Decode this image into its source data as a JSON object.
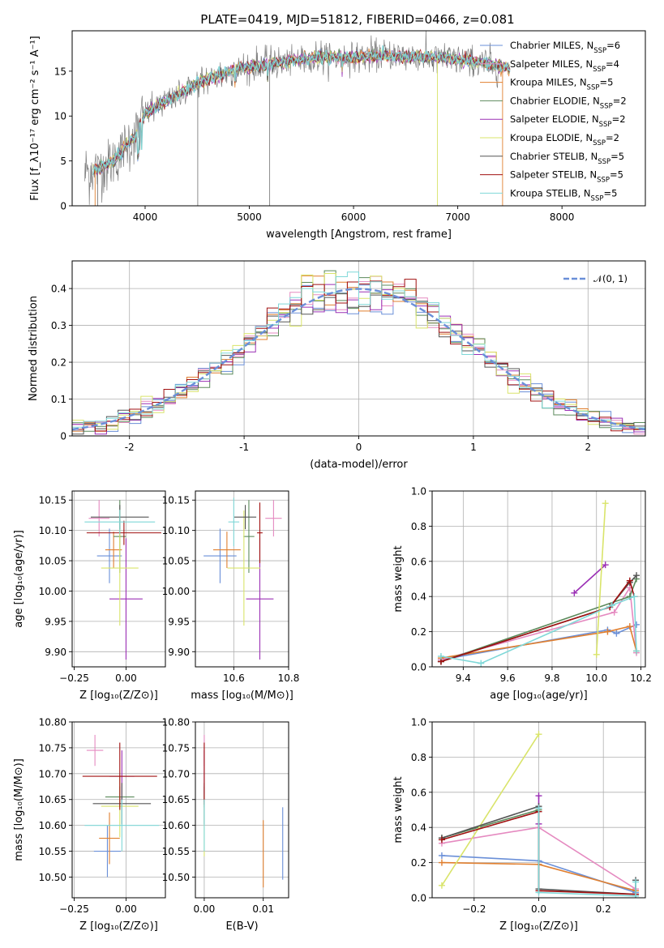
{
  "title": "PLATE=0419, MJD=51812, FIBERID=0466, z=0.081",
  "colors": {
    "Chabrier MILES": "#6a8fd8",
    "Salpeter MILES": "#e58ac0",
    "Kroupa MILES": "#e07f2f",
    "Chabrier ELODIE": "#5b8a5b",
    "Salpeter ELODIE": "#9b30b5",
    "Kroupa ELODIE": "#d9e46a",
    "Chabrier STELIB": "#555555",
    "Salpeter STELIB": "#a01010",
    "Kroupa STELIB": "#7fd8d8",
    "data": "#808080"
  },
  "chart_data": [
    {
      "id": "spectrum",
      "type": "line",
      "xlabel": "wavelength [Angstrom, rest frame]",
      "ylabel": "Flux [f_λ10⁻¹⁷ erg cm⁻² s⁻¹ A⁻¹]",
      "xlim": [
        3300,
        8800
      ],
      "ylim": [
        0,
        19.5
      ],
      "xticks": [
        4000,
        5000,
        6000,
        7000,
        8000
      ],
      "yticks": [
        0,
        5,
        10,
        15
      ],
      "grid": false,
      "legend_position": "right",
      "legend": [
        {
          "label": "Chabrier MILES, N",
          "sub": "SSP",
          "suffix": "=6"
        },
        {
          "label": "Salpeter MILES, N",
          "sub": "SSP",
          "suffix": "=4"
        },
        {
          "label": "Kroupa MILES, N",
          "sub": "SSP",
          "suffix": "=5"
        },
        {
          "label": "Chabrier ELODIE, N",
          "sub": "SSP",
          "suffix": "=2"
        },
        {
          "label": "Salpeter ELODIE, N",
          "sub": "SSP",
          "suffix": "=2"
        },
        {
          "label": "Kroupa ELODIE, N",
          "sub": "SSP",
          "suffix": "=2"
        },
        {
          "label": "Chabrier STELIB, N",
          "sub": "SSP",
          "suffix": "=5"
        },
        {
          "label": "Salpeter STELIB, N",
          "sub": "SSP",
          "suffix": "=5"
        },
        {
          "label": "Kroupa STELIB, N",
          "sub": "SSP",
          "suffix": "=5"
        }
      ],
      "continuum_x": [
        3500,
        3700,
        3900,
        4000,
        4100,
        4300,
        4500,
        4700,
        4900,
        5100,
        5300,
        5500,
        5700,
        5900,
        6100,
        6300,
        6500,
        6700,
        6900,
        7100,
        7300,
        7500
      ],
      "continuum_y": [
        3.8,
        5.0,
        7.8,
        10.2,
        11.0,
        12.3,
        13.6,
        14.5,
        15.3,
        15.6,
        16.0,
        16.3,
        16.6,
        16.5,
        16.6,
        16.7,
        16.6,
        16.6,
        16.4,
        16.2,
        15.8,
        15.3
      ],
      "model_range": [
        3500,
        7500
      ],
      "data_range": [
        3420,
        7430
      ]
    },
    {
      "id": "residuals",
      "type": "line",
      "xlabel": "(data-model)/error",
      "ylabel": "Normed distribution",
      "xlim": [
        -2.5,
        2.5
      ],
      "ylim": [
        0,
        0.475
      ],
      "xticks": [
        -2,
        -1,
        0,
        1,
        2
      ],
      "yticks": [
        0.0,
        0.1,
        0.2,
        0.3,
        0.4
      ],
      "grid": true,
      "legend_position": "top-right",
      "legend_label": "𝒩(0, 1)",
      "bin_width": 0.1,
      "bins_range": [
        -2.5,
        2.5
      ]
    },
    {
      "id": "age_vs_Z",
      "type": "scatter",
      "xlabel": "Z [log₁₀(Z/Z⊙)]",
      "ylabel": "age  [log₁₀(age/yr)]",
      "xlim": [
        -0.26,
        0.19
      ],
      "ylim": [
        9.875,
        10.165
      ],
      "xticks": [
        -0.25,
        0.0
      ],
      "xtick_labels": [
        "−0.25",
        "0.00"
      ],
      "yticks": [
        9.9,
        9.95,
        10.0,
        10.05,
        10.1,
        10.15
      ],
      "ytick_labels": [
        "9.90",
        "9.95",
        "10.00",
        "10.05",
        "10.10",
        "10.15"
      ],
      "grid": true,
      "points": [
        {
          "series": "Chabrier MILES",
          "x": -0.08,
          "xerr": 0.06,
          "y": 10.058,
          "yerr": 0.045
        },
        {
          "series": "Salpeter MILES",
          "x": -0.13,
          "xerr": 0.05,
          "y": 10.12,
          "yerr": 0.03
        },
        {
          "series": "Kroupa MILES",
          "x": -0.06,
          "xerr": 0.04,
          "y": 10.068,
          "yerr": 0.03
        },
        {
          "series": "Chabrier ELODIE",
          "x": -0.03,
          "xerr": 0.03,
          "y": 10.09,
          "yerr": 0.06
        },
        {
          "series": "Salpeter ELODIE",
          "x": 0.0,
          "xerr": 0.08,
          "y": 9.987,
          "yerr": 0.1
        },
        {
          "series": "Kroupa ELODIE",
          "x": -0.03,
          "xerr": 0.09,
          "y": 10.038,
          "yerr": 0.095
        },
        {
          "series": "Chabrier STELIB",
          "x": -0.03,
          "xerr": 0.14,
          "y": 10.122,
          "yerr": 0.02
        },
        {
          "series": "Salpeter STELIB",
          "x": -0.01,
          "xerr": 0.18,
          "y": 10.096,
          "yerr": 0.02
        },
        {
          "series": "Kroupa STELIB",
          "x": -0.03,
          "xerr": 0.17,
          "y": 10.114,
          "yerr": 0.02
        }
      ]
    },
    {
      "id": "age_vs_mass",
      "type": "scatter",
      "xlabel": "mass [log₁₀(M/M⊙)]",
      "ylabel": "",
      "xlim": [
        10.46,
        10.8
      ],
      "ylim": [
        9.875,
        10.165
      ],
      "xticks": [
        10.6,
        10.8
      ],
      "xtick_labels": [
        "10.6",
        "10.8"
      ],
      "yticks": [
        9.9,
        9.95,
        10.0,
        10.05,
        10.1,
        10.15
      ],
      "ytick_labels": [
        "9.90",
        "9.95",
        "10.00",
        "10.05",
        "10.10",
        "10.15"
      ],
      "grid": true,
      "points": [
        {
          "series": "Chabrier MILES",
          "x": 10.55,
          "xerr": 0.06,
          "y": 10.058,
          "yerr": 0.045
        },
        {
          "series": "Salpeter MILES",
          "x": 10.745,
          "xerr": 0.03,
          "y": 10.12,
          "yerr": 0.03
        },
        {
          "series": "Kroupa MILES",
          "x": 10.575,
          "xerr": 0.05,
          "y": 10.068,
          "yerr": 0.03
        },
        {
          "series": "Chabrier ELODIE",
          "x": 10.655,
          "xerr": 0.02,
          "y": 10.09,
          "yerr": 0.06
        },
        {
          "series": "Salpeter ELODIE",
          "x": 10.695,
          "xerr": 0.05,
          "y": 9.987,
          "yerr": 0.1
        },
        {
          "series": "Kroupa ELODIE",
          "x": 10.637,
          "xerr": 0.06,
          "y": 10.038,
          "yerr": 0.095
        },
        {
          "series": "Chabrier STELIB",
          "x": 10.642,
          "xerr": 0.04,
          "y": 10.122,
          "yerr": 0.02
        },
        {
          "series": "Salpeter STELIB",
          "x": 10.695,
          "xerr": 0.01,
          "y": 10.096,
          "yerr": 0.05
        },
        {
          "series": "Kroupa STELIB",
          "x": 10.6,
          "xerr": 0.02,
          "y": 10.114,
          "yerr": 0.04
        }
      ]
    },
    {
      "id": "weight_vs_age",
      "type": "line",
      "xlabel": "age  [log₁₀(age/yr)]",
      "ylabel": "mass weight",
      "xlim": [
        9.26,
        10.22
      ],
      "ylim": [
        0.0,
        1.0
      ],
      "xticks": [
        9.4,
        9.6,
        9.8,
        10.0,
        10.2
      ],
      "xtick_labels": [
        "9.4",
        "9.6",
        "9.8",
        "10.0",
        "10.2"
      ],
      "yticks": [
        0.0,
        0.2,
        0.4,
        0.6,
        0.8,
        1.0
      ],
      "ytick_labels": [
        "0.0",
        "0.2",
        "0.4",
        "0.6",
        "0.8",
        "1.0"
      ],
      "grid": true,
      "series": [
        {
          "name": "Chabrier MILES",
          "x": [
            9.3,
            10.05,
            10.09,
            10.18
          ],
          "y": [
            0.04,
            0.21,
            0.19,
            0.24
          ]
        },
        {
          "name": "Salpeter MILES",
          "x": [
            9.3,
            10.08,
            10.15,
            10.18
          ],
          "y": [
            0.04,
            0.31,
            0.45,
            0.08
          ]
        },
        {
          "name": "Kroupa MILES",
          "x": [
            9.3,
            10.05,
            10.15,
            10.18
          ],
          "y": [
            0.05,
            0.2,
            0.23,
            0.09
          ]
        },
        {
          "name": "Chabrier ELODIE",
          "x": [
            9.3,
            10.15,
            10.18
          ],
          "y": [
            0.03,
            0.4,
            0.5
          ]
        },
        {
          "name": "Salpeter ELODIE",
          "x": [
            9.9,
            10.04
          ],
          "y": [
            0.42,
            0.58
          ]
        },
        {
          "name": "Kroupa ELODIE",
          "x": [
            10.0,
            10.04
          ],
          "y": [
            0.07,
            0.93
          ]
        },
        {
          "name": "Chabrier STELIB",
          "x": [
            9.3,
            10.06,
            10.15,
            10.18
          ],
          "y": [
            0.03,
            0.34,
            0.48,
            0.52
          ]
        },
        {
          "name": "Salpeter STELIB",
          "x": [
            9.3,
            10.06,
            10.15,
            10.17
          ],
          "y": [
            0.03,
            0.34,
            0.49,
            0.4
          ]
        },
        {
          "name": "Kroupa STELIB",
          "x": [
            9.3,
            9.48,
            10.07,
            10.17,
            10.18
          ],
          "y": [
            0.06,
            0.02,
            0.35,
            0.4,
            0.09
          ]
        }
      ]
    },
    {
      "id": "mass_vs_Z",
      "type": "scatter",
      "xlabel": "Z [log₁₀(Z/Z⊙)]",
      "ylabel": "mass [log₁₀(M/M⊙)]",
      "xlim": [
        -0.26,
        0.19
      ],
      "ylim": [
        10.46,
        10.8
      ],
      "xticks": [
        -0.25,
        0.0
      ],
      "xtick_labels": [
        "−0.25",
        "0.00"
      ],
      "yticks": [
        10.5,
        10.55,
        10.6,
        10.65,
        10.7,
        10.75,
        10.8
      ],
      "ytick_labels": [
        "10.50",
        "10.55",
        "10.60",
        "10.65",
        "10.70",
        "10.75",
        "10.80"
      ],
      "grid": true,
      "points": [
        {
          "series": "Chabrier MILES",
          "x": -0.09,
          "xerr": 0.065,
          "y": 10.55,
          "yerr": 0.05
        },
        {
          "series": "Salpeter MILES",
          "x": -0.15,
          "xerr": 0.04,
          "y": 10.745,
          "yerr": 0.03
        },
        {
          "series": "Kroupa MILES",
          "x": -0.08,
          "xerr": 0.05,
          "y": 10.575,
          "yerr": 0.05
        },
        {
          "series": "Chabrier ELODIE",
          "x": -0.03,
          "xerr": 0.07,
          "y": 10.655,
          "yerr": 0.02
        },
        {
          "series": "Salpeter ELODIE",
          "x": -0.02,
          "xerr": 0.06,
          "y": 10.695,
          "yerr": 0.05
        },
        {
          "series": "Kroupa ELODIE",
          "x": -0.03,
          "xerr": 0.09,
          "y": 10.637,
          "yerr": 0.06
        },
        {
          "series": "Chabrier STELIB",
          "x": -0.02,
          "xerr": 0.14,
          "y": 10.642,
          "yerr": 0.04
        },
        {
          "series": "Salpeter STELIB",
          "x": -0.03,
          "xerr": 0.18,
          "y": 10.695,
          "yerr": 0.065
        },
        {
          "series": "Kroupa STELIB",
          "x": -0.02,
          "xerr": 0.18,
          "y": 10.6,
          "yerr": 0.05
        }
      ]
    },
    {
      "id": "mass_vs_EBV",
      "type": "scatter",
      "xlabel": "E(B-V)",
      "ylabel": "",
      "xlim": [
        -0.0015,
        0.0143
      ],
      "ylim": [
        10.46,
        10.8
      ],
      "xticks": [
        0.0,
        0.01
      ],
      "xtick_labels": [
        "0.00",
        "0.01"
      ],
      "yticks": [
        10.5,
        10.55,
        10.6,
        10.65,
        10.7,
        10.75,
        10.8
      ],
      "ytick_labels": [
        "10.50",
        "10.55",
        "10.60",
        "10.65",
        "10.70",
        "10.75",
        "10.80"
      ],
      "grid": true,
      "points": [
        {
          "series": "Chabrier MILES",
          "x": 0.0133,
          "xerr": 0,
          "y": 10.565,
          "yerr": 0.07
        },
        {
          "series": "Salpeter MILES",
          "x": 0.0,
          "xerr": 0,
          "y": 10.745,
          "yerr": 0.03
        },
        {
          "series": "Kroupa MILES",
          "x": 0.01,
          "xerr": 0,
          "y": 10.545,
          "yerr": 0.065
        },
        {
          "series": "Chabrier ELODIE",
          "x": 0.0,
          "xerr": 0,
          "y": 10.655,
          "yerr": 0.02
        },
        {
          "series": "Salpeter ELODIE",
          "x": 0.0,
          "xerr": 0,
          "y": 10.695,
          "yerr": 0.05
        },
        {
          "series": "Kroupa ELODIE",
          "x": 0.0,
          "xerr": 0,
          "y": 10.6,
          "yerr": 0.06
        },
        {
          "series": "Chabrier STELIB",
          "x": 0.0,
          "xerr": 0,
          "y": 10.642,
          "yerr": 0.04
        },
        {
          "series": "Salpeter STELIB",
          "x": 0.0,
          "xerr": 0,
          "y": 10.7,
          "yerr": 0.06
        },
        {
          "series": "Kroupa STELIB",
          "x": 0.0,
          "xerr": 0,
          "y": 10.6,
          "yerr": 0.05
        }
      ]
    },
    {
      "id": "weight_vs_Z",
      "type": "line",
      "xlabel": "Z [log₁₀(Z/Z⊙)]",
      "ylabel": "mass weight",
      "xlim": [
        -0.33,
        0.33
      ],
      "ylim": [
        0.0,
        1.0
      ],
      "xticks": [
        -0.2,
        0.0,
        0.2
      ],
      "xtick_labels": [
        "−0.2",
        "0.0",
        "0.2"
      ],
      "yticks": [
        0.0,
        0.2,
        0.4,
        0.6,
        0.8,
        1.0
      ],
      "ytick_labels": [
        "0.0",
        "0.2",
        "0.4",
        "0.6",
        "0.8",
        "1.0"
      ],
      "grid": true,
      "series": [
        {
          "name": "Chabrier MILES",
          "x": [
            -0.3,
            0.0,
            0.3
          ],
          "y": [
            0.24,
            0.21,
            0.03
          ]
        },
        {
          "name": "Salpeter MILES",
          "x": [
            -0.3,
            0.0,
            0.3
          ],
          "y": [
            0.31,
            0.4,
            0.05
          ]
        },
        {
          "name": "Kroupa MILES",
          "x": [
            -0.3,
            0.0,
            0.3
          ],
          "y": [
            0.2,
            0.19,
            0.04
          ]
        },
        {
          "name": "Chabrier ELODIE",
          "x": [
            -0.3,
            0.0
          ],
          "y": [
            0.34,
            0.5
          ]
        },
        {
          "name": "Salpeter ELODIE",
          "x": [
            0.0,
            0.0
          ],
          "y": [
            0.58,
            0.42
          ]
        },
        {
          "name": "Kroupa ELODIE",
          "x": [
            -0.3,
            0.0
          ],
          "y": [
            0.07,
            0.93
          ]
        },
        {
          "name": "Chabrier STELIB",
          "x": [
            -0.3,
            0.0,
            0.0,
            0.3,
            0.3
          ],
          "y": [
            0.34,
            0.52,
            0.05,
            0.02,
            0.1
          ]
        },
        {
          "name": "Salpeter STELIB",
          "x": [
            -0.3,
            0.0,
            0.0,
            0.3
          ],
          "y": [
            0.33,
            0.49,
            0.04,
            0.02
          ]
        },
        {
          "name": "Kroupa STELIB",
          "x": [
            0.0,
            0.0,
            0.3,
            0.3
          ],
          "y": [
            0.51,
            0.03,
            0.01,
            0.09
          ]
        }
      ]
    }
  ]
}
